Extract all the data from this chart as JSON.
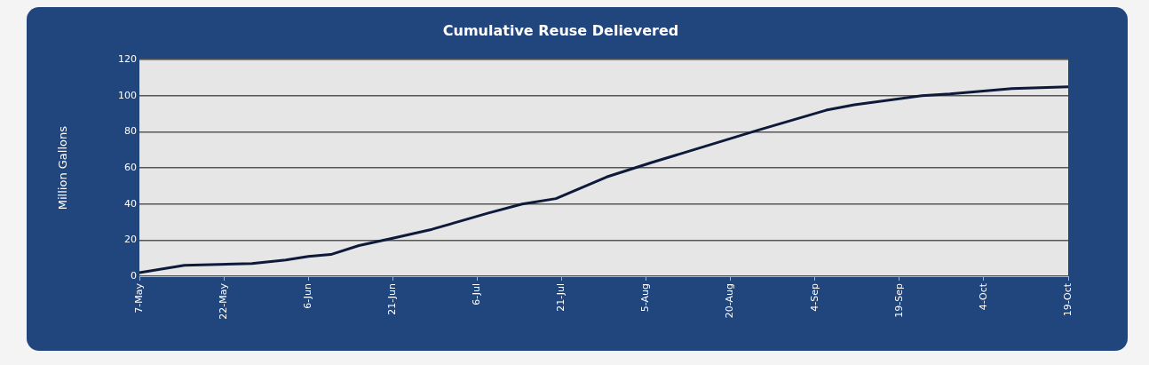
{
  "chart_data": {
    "type": "line",
    "title": "Cumulative Reuse Delievered",
    "ylabel": "Million Gallons",
    "x": [
      "--05-07",
      "--05-15",
      "--05-27",
      "--06-02",
      "--06-06",
      "--06-10",
      "--06-15",
      "--06-21",
      "--06-28",
      "--07-08",
      "--07-14",
      "--07-20",
      "--07-29",
      "--08-06",
      "--08-25",
      "--09-06",
      "--09-11",
      "--09-23",
      "--09-28",
      "--10-09",
      "--10-19"
    ],
    "series": [
      {
        "color": "#0d1a3a",
        "values": [
          2,
          6,
          7,
          9,
          11,
          12,
          17,
          21,
          26,
          35,
          40,
          43,
          55,
          63,
          81,
          92,
          95,
          100,
          101,
          104,
          105
        ]
      }
    ],
    "xlim": [
      "--05-07",
      "--10-19"
    ],
    "xticks": [
      {
        "value": "--05-07",
        "label": "7-May"
      },
      {
        "value": "--05-22",
        "label": "22-May"
      },
      {
        "value": "--06-06",
        "label": "6-Jun"
      },
      {
        "value": "--06-21",
        "label": "21-Jun"
      },
      {
        "value": "--07-06",
        "label": "6-Jul"
      },
      {
        "value": "--07-21",
        "label": "21-Jul"
      },
      {
        "value": "--08-05",
        "label": "5-Aug"
      },
      {
        "value": "--08-20",
        "label": "20-Aug"
      },
      {
        "value": "--09-04",
        "label": "4-Sep"
      },
      {
        "value": "--09-19",
        "label": "19-Sep"
      },
      {
        "value": "--10-04",
        "label": "4-Oct"
      },
      {
        "value": "--10-19",
        "label": "19-Oct"
      }
    ],
    "ylim": [
      0,
      120
    ],
    "yticks": [
      0,
      20,
      40,
      60,
      80,
      100,
      120
    ],
    "grid": "y",
    "legend": false,
    "marker": "none",
    "line_style": "solid"
  }
}
